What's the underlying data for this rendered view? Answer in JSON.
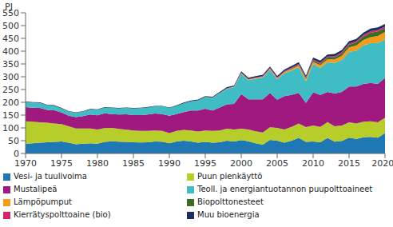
{
  "chart_data": {
    "type": "area",
    "stacked": true,
    "y_label": "PJ",
    "grid": false,
    "legend": "bottom",
    "x": [
      1970,
      1971,
      1972,
      1973,
      1974,
      1975,
      1976,
      1977,
      1978,
      1979,
      1980,
      1981,
      1982,
      1983,
      1984,
      1985,
      1986,
      1987,
      1988,
      1989,
      1990,
      1991,
      1992,
      1993,
      1994,
      1995,
      1996,
      1997,
      1998,
      1999,
      2000,
      2001,
      2002,
      2003,
      2004,
      2005,
      2006,
      2007,
      2008,
      2009,
      2010,
      2011,
      2012,
      2013,
      2014,
      2015,
      2016,
      2017,
      2018,
      2019,
      2020
    ],
    "xlim": [
      1970,
      2020
    ],
    "xticks": [
      1970,
      1975,
      1980,
      1985,
      1990,
      1995,
      2000,
      2005,
      2010,
      2015,
      {
        "value": 2020,
        "label": "2020*"
      }
    ],
    "ylim": [
      0,
      550
    ],
    "yticks": [
      0,
      50,
      100,
      150,
      200,
      250,
      300,
      350,
      400,
      450,
      500,
      550
    ],
    "series": [
      {
        "name": "Vesi- ja tuulivoima",
        "color": "#1f78b4",
        "values": [
          38,
          40,
          42,
          44,
          45,
          47,
          42,
          36,
          38,
          40,
          38,
          45,
          48,
          46,
          45,
          44,
          43,
          44,
          47,
          46,
          40,
          47,
          50,
          47,
          42,
          45,
          42,
          44,
          50,
          47,
          52,
          48,
          40,
          34,
          53,
          50,
          42,
          50,
          61,
          45,
          47,
          44,
          61,
          46,
          49,
          62,
          57,
          63,
          65,
          62,
          80
        ]
      },
      {
        "name": "Puun pienkäyttö",
        "color": "#b6cd2a",
        "values": [
          88,
          84,
          80,
          76,
          72,
          68,
          64,
          62,
          60,
          58,
          56,
          54,
          52,
          50,
          48,
          46,
          45,
          44,
          43,
          42,
          40,
          41,
          42,
          43,
          44,
          45,
          46,
          46,
          47,
          47,
          45,
          46,
          47,
          48,
          49,
          50,
          52,
          54,
          56,
          58,
          62,
          60,
          62,
          60,
          60,
          60,
          60,
          61,
          61,
          60,
          60
        ]
      },
      {
        "name": "Mustalipeä",
        "color": "#a0197f",
        "values": [
          55,
          55,
          56,
          50,
          52,
          45,
          42,
          44,
          48,
          54,
          55,
          58,
          54,
          56,
          60,
          60,
          62,
          64,
          66,
          66,
          68,
          66,
          70,
          78,
          82,
          85,
          80,
          90,
          95,
          100,
          135,
          118,
          125,
          130,
          135,
          110,
          130,
          125,
          120,
          95,
          130,
          125,
          118,
          128,
          132,
          140,
          145,
          148,
          150,
          150,
          155
        ]
      },
      {
        "name": "Teoll. ja energiantuotannon puupolttoaineet",
        "color": "#3fbcc4",
        "values": [
          20,
          20,
          20,
          19,
          18,
          16,
          16,
          17,
          18,
          20,
          22,
          22,
          24,
          24,
          25,
          26,
          27,
          28,
          28,
          30,
          30,
          32,
          34,
          36,
          40,
          45,
          50,
          55,
          60,
          65,
          80,
          75,
          80,
          85,
          90,
          80,
          90,
          95,
          100,
          85,
          110,
          105,
          115,
          120,
          125,
          135,
          140,
          150,
          155,
          160,
          150
        ]
      },
      {
        "name": "Lämpöpumput",
        "color": "#f39c1a",
        "values": [
          0,
          0,
          0,
          0,
          0,
          0,
          0,
          0,
          0,
          0,
          0,
          0,
          0,
          0,
          0,
          0,
          0,
          0,
          0,
          0,
          0,
          0,
          0,
          0,
          0,
          1,
          1,
          1,
          2,
          2,
          2,
          2,
          3,
          3,
          4,
          4,
          5,
          6,
          7,
          8,
          9,
          11,
          12,
          14,
          16,
          18,
          20,
          22,
          24,
          27,
          30
        ]
      },
      {
        "name": "Biopolttonesteet",
        "color": "#3d6b22",
        "values": [
          0,
          0,
          0,
          0,
          0,
          0,
          0,
          0,
          0,
          0,
          0,
          0,
          0,
          0,
          0,
          0,
          0,
          0,
          0,
          0,
          0,
          0,
          0,
          0,
          0,
          0,
          0,
          0,
          0,
          0,
          0,
          0,
          0,
          0,
          0,
          0,
          0,
          2,
          3,
          4,
          5,
          6,
          7,
          8,
          9,
          10,
          12,
          14,
          17,
          18,
          15
        ]
      },
      {
        "name": "Kierrätyspolttoaine (bio)",
        "color": "#d6246a",
        "values": [
          0,
          0,
          0,
          0,
          0,
          0,
          0,
          0,
          0,
          0,
          0,
          0,
          0,
          0,
          0,
          0,
          0,
          0,
          0,
          0,
          0,
          0,
          0,
          0,
          0,
          0,
          0,
          1,
          1,
          1,
          2,
          2,
          2,
          2,
          3,
          3,
          3,
          3,
          3,
          3,
          4,
          4,
          4,
          4,
          5,
          5,
          5,
          5,
          6,
          6,
          6
        ]
      },
      {
        "name": "Muu bioenergia",
        "color": "#1b2f5c",
        "values": [
          2,
          2,
          2,
          2,
          2,
          2,
          2,
          2,
          2,
          2,
          2,
          2,
          2,
          2,
          2,
          2,
          2,
          2,
          2,
          2,
          2,
          2,
          3,
          3,
          3,
          3,
          3,
          4,
          4,
          4,
          5,
          5,
          5,
          6,
          6,
          6,
          6,
          7,
          7,
          7,
          8,
          8,
          8,
          9,
          9,
          9,
          9,
          10,
          10,
          10,
          10
        ]
      }
    ]
  }
}
